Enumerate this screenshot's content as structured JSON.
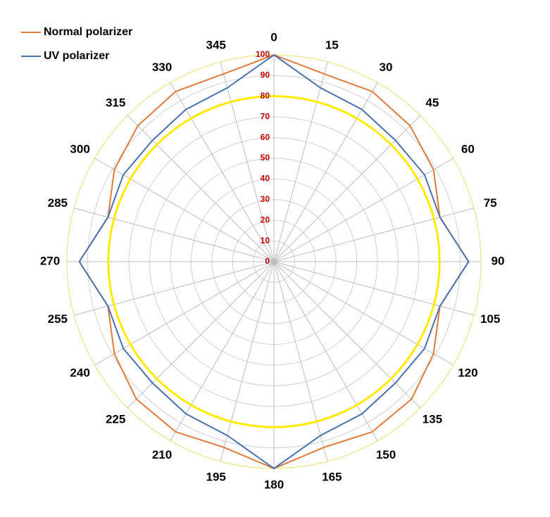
{
  "chart_data": {
    "type": "radar",
    "categories": [
      "0",
      "15",
      "30",
      "45",
      "60",
      "75",
      "90",
      "105",
      "120",
      "135",
      "150",
      "165",
      "180",
      "195",
      "210",
      "225",
      "240",
      "255",
      "270",
      "285",
      "300",
      "315",
      "330",
      "345"
    ],
    "series": [
      {
        "name": "Normal polarizer",
        "color": "#e07b39",
        "values": [
          100,
          94,
          95,
          93,
          89,
          83,
          94,
          83,
          89,
          94,
          95,
          93,
          100,
          93,
          95,
          94,
          89,
          83,
          94,
          83,
          89,
          93,
          95,
          94
        ]
      },
      {
        "name": "UV polarizer",
        "color": "#4a72b0",
        "values": [
          100,
          87,
          85,
          83,
          84,
          83,
          94,
          83,
          84,
          83,
          85,
          87,
          100,
          87,
          85,
          83,
          84,
          83,
          94,
          83,
          84,
          83,
          85,
          87
        ]
      }
    ],
    "rlim": [
      0,
      100
    ],
    "rticks": [
      0,
      10,
      20,
      30,
      40,
      50,
      60,
      70,
      80,
      90,
      100
    ],
    "grid": true,
    "reference_ring": {
      "value": 80,
      "color": "#ffea00"
    },
    "outer_ring_color": "#e8e070",
    "legend": "top-left"
  }
}
